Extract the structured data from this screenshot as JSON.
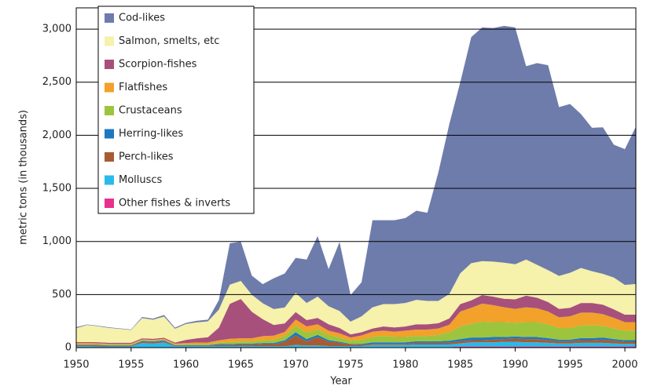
{
  "chart_data": {
    "type": "stacked_area",
    "x_label": "Year",
    "y_label": "metric tons (in thousands)",
    "x": [
      1950,
      1951,
      1952,
      1953,
      1954,
      1955,
      1956,
      1957,
      1958,
      1959,
      1960,
      1961,
      1962,
      1963,
      1964,
      1965,
      1966,
      1967,
      1968,
      1969,
      1970,
      1971,
      1972,
      1973,
      1974,
      1975,
      1976,
      1977,
      1978,
      1979,
      1980,
      1981,
      1982,
      1983,
      1984,
      1985,
      1986,
      1987,
      1988,
      1989,
      1990,
      1991,
      1992,
      1993,
      1994,
      1995,
      1996,
      1997,
      1998,
      1999,
      2000,
      2001
    ],
    "xlim": [
      1950,
      2001
    ],
    "xticks": [
      1950,
      1955,
      1960,
      1965,
      1970,
      1975,
      1980,
      1985,
      1990,
      1995,
      2000
    ],
    "ylim": [
      0,
      3200
    ],
    "yticks": [
      0,
      500,
      {
        "value": 1000,
        "label": "1,000"
      },
      {
        "value": 1500,
        "label": "1,500"
      },
      {
        "value": 2000,
        "label": "2,000"
      },
      {
        "value": 2500,
        "label": "2,500"
      },
      {
        "value": 3000,
        "label": "3,000"
      }
    ],
    "grid": true,
    "legend": "upper left",
    "series": [
      {
        "name": "Cod-likes",
        "color": "#6e7cab",
        "values": [
          10,
          5,
          5,
          5,
          5,
          5,
          10,
          10,
          15,
          10,
          10,
          15,
          15,
          90,
          390,
          370,
          180,
          180,
          290,
          320,
          330,
          410,
          570,
          350,
          650,
          250,
          320,
          820,
          790,
          790,
          800,
          840,
          830,
          1210,
          1600,
          1800,
          2130,
          2200,
          2200,
          2230,
          2230,
          1820,
          1900,
          1930,
          1590,
          1590,
          1450,
          1350,
          1380,
          1250,
          1280,
          1480
        ]
      },
      {
        "name": "Salmon, smelts, etc",
        "color": "#f6f1ab",
        "values": [
          130,
          160,
          150,
          140,
          130,
          120,
          190,
          180,
          200,
          130,
          150,
          150,
          150,
          170,
          180,
          170,
          160,
          150,
          150,
          150,
          180,
          160,
          200,
          170,
          160,
          120,
          150,
          200,
          210,
          220,
          220,
          230,
          220,
          210,
          230,
          290,
          350,
          320,
          330,
          340,
          330,
          340,
          310,
          300,
          310,
          330,
          330,
          300,
          290,
          300,
          280,
          290
        ]
      },
      {
        "name": "Scorpion-fishes",
        "color": "#a8507c",
        "values": [
          10,
          10,
          10,
          10,
          10,
          10,
          10,
          10,
          10,
          10,
          30,
          40,
          50,
          120,
          330,
          370,
          250,
          160,
          100,
          80,
          70,
          60,
          60,
          60,
          50,
          30,
          30,
          30,
          40,
          40,
          40,
          50,
          50,
          50,
          60,
          70,
          70,
          80,
          80,
          80,
          90,
          110,
          100,
          90,
          80,
          80,
          90,
          90,
          90,
          80,
          70,
          70
        ]
      },
      {
        "name": "Flatfishes",
        "color": "#f2a12a",
        "values": [
          10,
          10,
          10,
          10,
          10,
          10,
          10,
          10,
          10,
          10,
          10,
          15,
          15,
          20,
          30,
          30,
          30,
          40,
          40,
          40,
          60,
          60,
          50,
          40,
          40,
          30,
          40,
          50,
          50,
          50,
          60,
          60,
          60,
          60,
          70,
          140,
          150,
          170,
          160,
          140,
          130,
          140,
          130,
          120,
          100,
          110,
          120,
          120,
          110,
          100,
          80,
          80
        ]
      },
      {
        "name": "Crustaceans",
        "color": "#9dc43d",
        "values": [
          5,
          5,
          5,
          5,
          5,
          5,
          5,
          5,
          5,
          5,
          10,
          10,
          10,
          15,
          20,
          20,
          20,
          25,
          30,
          40,
          60,
          60,
          50,
          50,
          40,
          30,
          40,
          50,
          60,
          50,
          50,
          50,
          50,
          60,
          80,
          120,
          130,
          150,
          140,
          140,
          130,
          140,
          140,
          130,
          110,
          110,
          120,
          120,
          110,
          100,
          90,
          90
        ]
      },
      {
        "name": "Herring-likes",
        "color": "#1c79c0",
        "values": [
          5,
          5,
          5,
          5,
          5,
          5,
          10,
          10,
          10,
          5,
          5,
          5,
          5,
          10,
          10,
          10,
          10,
          10,
          10,
          15,
          30,
          20,
          20,
          15,
          10,
          5,
          10,
          15,
          15,
          15,
          15,
          15,
          15,
          15,
          20,
          20,
          25,
          25,
          25,
          20,
          20,
          20,
          20,
          20,
          15,
          15,
          20,
          20,
          20,
          15,
          15,
          15
        ]
      },
      {
        "name": "Perch-likes",
        "color": "#a85b32",
        "values": [
          10,
          10,
          10,
          5,
          5,
          5,
          10,
          10,
          10,
          5,
          5,
          5,
          5,
          10,
          10,
          15,
          15,
          20,
          20,
          40,
          90,
          40,
          80,
          40,
          30,
          15,
          10,
          10,
          10,
          10,
          10,
          15,
          15,
          15,
          15,
          20,
          20,
          20,
          25,
          25,
          30,
          30,
          30,
          25,
          20,
          20,
          25,
          25,
          30,
          25,
          20,
          20
        ]
      },
      {
        "name": "Molluscs",
        "color": "#2bb9e9",
        "values": [
          10,
          10,
          8,
          8,
          8,
          8,
          40,
          35,
          45,
          10,
          10,
          10,
          10,
          10,
          10,
          10,
          10,
          10,
          10,
          10,
          20,
          15,
          15,
          10,
          10,
          10,
          10,
          20,
          20,
          20,
          20,
          25,
          25,
          25,
          25,
          30,
          40,
          40,
          40,
          45,
          45,
          40,
          40,
          35,
          30,
          30,
          35,
          35,
          35,
          30,
          25,
          25
        ]
      },
      {
        "name": "Other fishes & inverts",
        "color": "#e8318d",
        "values": [
          3,
          3,
          3,
          3,
          3,
          3,
          3,
          3,
          3,
          3,
          3,
          3,
          3,
          3,
          3,
          3,
          3,
          3,
          3,
          3,
          5,
          5,
          5,
          5,
          5,
          5,
          5,
          5,
          5,
          5,
          5,
          5,
          5,
          5,
          5,
          10,
          10,
          10,
          10,
          10,
          10,
          10,
          10,
          10,
          10,
          10,
          10,
          10,
          10,
          10,
          10,
          10
        ]
      }
    ]
  }
}
